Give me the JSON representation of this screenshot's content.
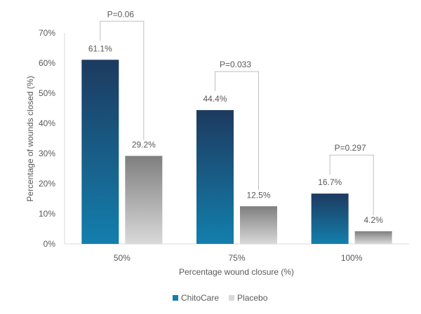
{
  "chart_data": {
    "type": "bar",
    "title": "",
    "xlabel": "Percentage wound closure (%)",
    "ylabel": "Percentage of wounds closed (%)",
    "categories": [
      "50%",
      "75%",
      "100%"
    ],
    "ylim": [
      0,
      70
    ],
    "yticks": [
      0,
      10,
      20,
      30,
      40,
      50,
      60,
      70
    ],
    "ytick_labels": [
      "0%",
      "10%",
      "20%",
      "30%",
      "40%",
      "50%",
      "60%",
      "70%"
    ],
    "grid": false,
    "legend_position": "bottom-center",
    "series": [
      {
        "name": "ChitoCare",
        "values": [
          61.1,
          44.4,
          16.7
        ],
        "labels": [
          "61.1%",
          "44.4%",
          "16.7%"
        ],
        "color_top": "#1d3a5f",
        "color_bottom": "#137fad"
      },
      {
        "name": "Placebo",
        "values": [
          29.2,
          12.5,
          4.2
        ],
        "labels": [
          "29.2%",
          "12.5%",
          "4.2%"
        ],
        "color_top": "#7f7f7f",
        "color_bottom": "#d9d9d9"
      }
    ],
    "annotations": [
      {
        "text": "P=0.06",
        "category": "50%"
      },
      {
        "text": "P=0.033",
        "category": "75%"
      },
      {
        "text": "P=0.297",
        "category": "100%"
      }
    ]
  }
}
